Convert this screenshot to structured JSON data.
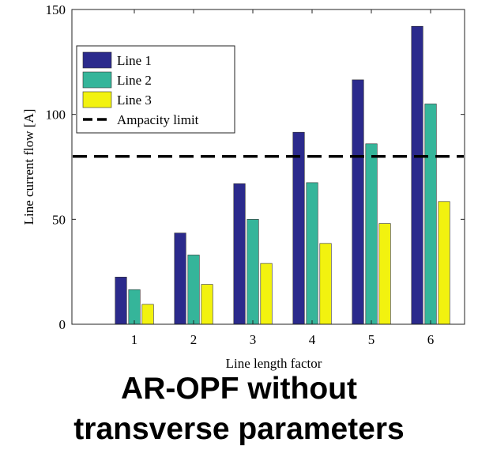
{
  "caption": {
    "line1": "AR-OPF without",
    "line2": "transverse parameters"
  },
  "chart_data": {
    "type": "bar",
    "title": "",
    "xlabel": "Line length factor",
    "ylabel": "Line current flow [A]",
    "categories": [
      "1",
      "2",
      "3",
      "4",
      "5",
      "6"
    ],
    "ylim": [
      0,
      150
    ],
    "yticks": [
      0,
      50,
      100,
      150
    ],
    "grid": false,
    "legend_position": "top-left",
    "series": [
      {
        "name": "Line 1",
        "color": "#2b2a8c",
        "values": [
          22.5,
          43.5,
          67,
          91.5,
          116.5,
          142
        ]
      },
      {
        "name": "Line 2",
        "color": "#35b59a",
        "values": [
          16.5,
          33,
          50,
          67.5,
          86,
          105
        ]
      },
      {
        "name": "Line 3",
        "color": "#f2f20f",
        "values": [
          9.5,
          19,
          29,
          38.5,
          48,
          58.5
        ]
      }
    ],
    "reference_lines": [
      {
        "name": "Ampacity limit",
        "y": 80,
        "style": "dashed",
        "color": "#000000"
      }
    ]
  }
}
